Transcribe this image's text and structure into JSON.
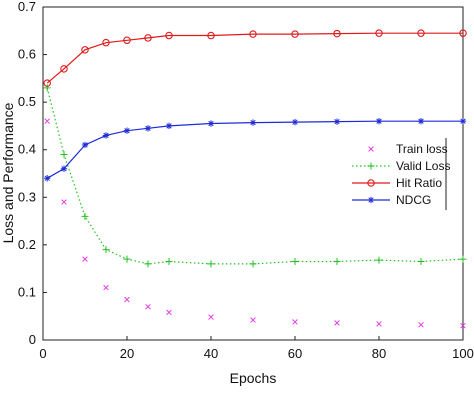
{
  "chart_data": {
    "type": "line",
    "xlabel": "Epochs",
    "ylabel": "Loss and Performance",
    "xlim": [
      0,
      100
    ],
    "ylim": [
      0,
      0.7
    ],
    "grid": false,
    "legend_position": "right",
    "x_ticks": [
      0,
      20,
      40,
      60,
      80,
      100
    ],
    "x_tick_labels": [
      "0",
      "20",
      "40",
      "60",
      "80",
      "100"
    ],
    "y_ticks": [
      0,
      0.1,
      0.2,
      0.3,
      0.4,
      0.5,
      0.6,
      0.7
    ],
    "y_tick_labels": [
      "0",
      "0.1",
      "0.2",
      "0.3",
      "0.4",
      "0.5",
      "0.6",
      "0.7"
    ],
    "x": [
      1,
      5,
      10,
      15,
      20,
      25,
      30,
      40,
      50,
      60,
      70,
      80,
      90,
      100
    ],
    "series": [
      {
        "name": "Train loss",
        "color": "#e03ee0",
        "line": "none",
        "marker": "x",
        "values": [
          0.46,
          0.29,
          0.17,
          0.11,
          0.085,
          0.07,
          0.058,
          0.048,
          0.042,
          0.038,
          0.036,
          0.034,
          0.032,
          0.03
        ]
      },
      {
        "name": "Valid Loss",
        "color": "#22c022",
        "line": "dotted",
        "marker": "+",
        "values": [
          0.53,
          0.39,
          0.26,
          0.19,
          0.17,
          0.16,
          0.165,
          0.16,
          0.16,
          0.165,
          0.165,
          0.168,
          0.165,
          0.17
        ]
      },
      {
        "name": "Hit Ratio",
        "color": "#e01b1b",
        "line": "solid",
        "marker": "o",
        "values": [
          0.54,
          0.57,
          0.61,
          0.625,
          0.63,
          0.635,
          0.64,
          0.64,
          0.643,
          0.643,
          0.644,
          0.645,
          0.645,
          0.645
        ]
      },
      {
        "name": "NDCG",
        "color": "#1f2bd8",
        "line": "solid",
        "marker": "*",
        "values": [
          0.34,
          0.36,
          0.41,
          0.43,
          0.44,
          0.445,
          0.45,
          0.455,
          0.457,
          0.458,
          0.459,
          0.46,
          0.46,
          0.46
        ]
      }
    ]
  }
}
